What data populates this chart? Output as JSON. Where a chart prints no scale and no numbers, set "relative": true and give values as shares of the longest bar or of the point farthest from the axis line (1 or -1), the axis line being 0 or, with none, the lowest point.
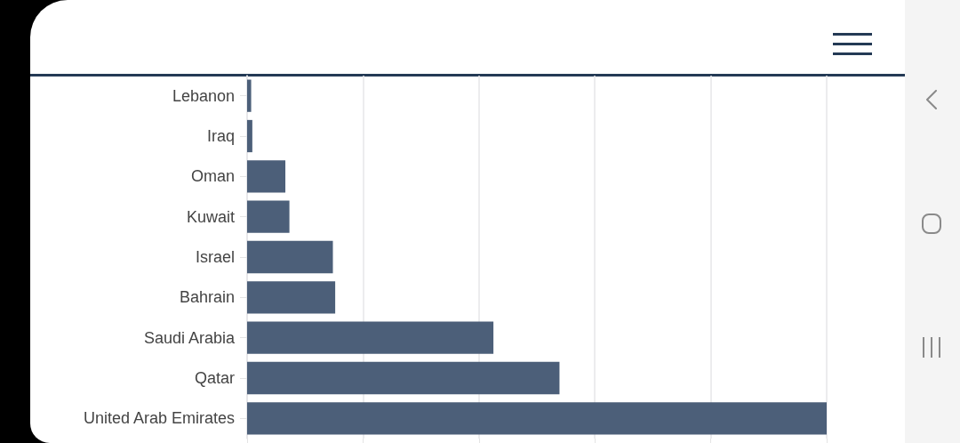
{
  "chart_data": {
    "type": "bar",
    "orientation": "horizontal",
    "relative": true,
    "categories": [
      "Lebanon",
      "Iraq",
      "Oman",
      "Kuwait",
      "Israel",
      "Bahrain",
      "Saudi Arabia",
      "Qatar",
      "United Arab Emirates"
    ],
    "values": [
      0.007,
      0.009,
      0.066,
      0.073,
      0.148,
      0.152,
      0.425,
      0.539,
      1
    ],
    "color": "#4c5f79",
    "grid": "x"
  }
}
